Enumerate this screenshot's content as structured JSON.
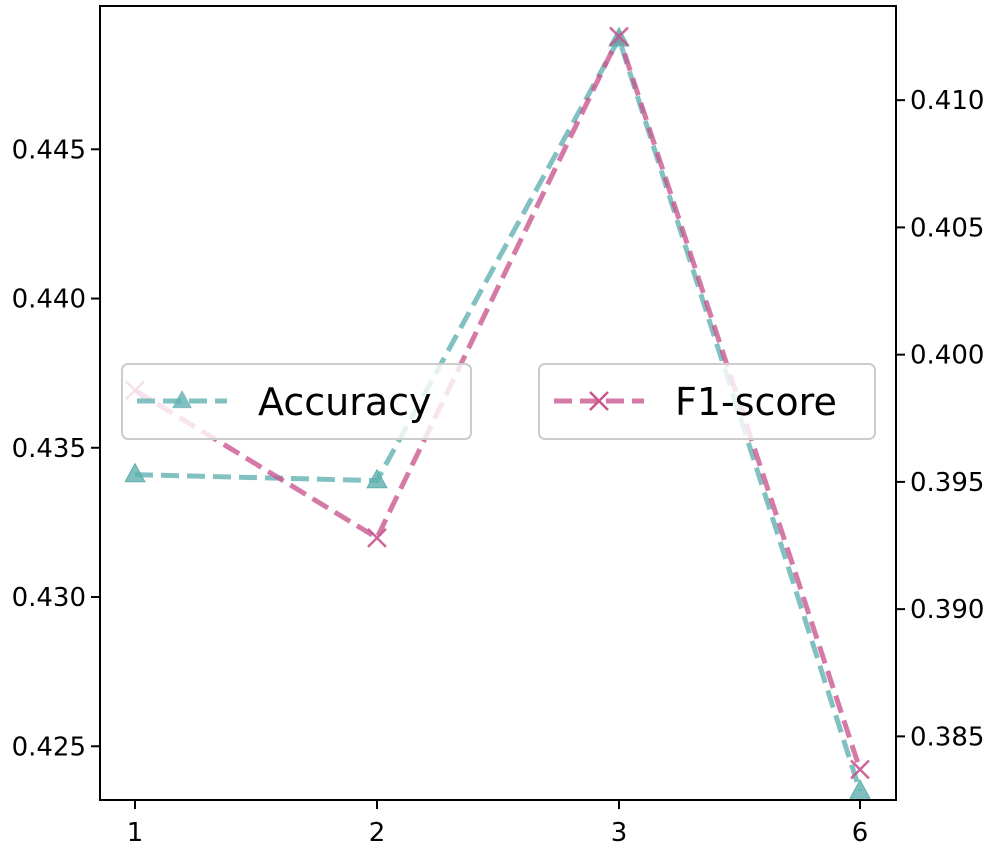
{
  "chart_data": {
    "type": "line",
    "categories": [
      "1",
      "2",
      "3",
      "6"
    ],
    "y_left": {
      "lim": [
        0.4232,
        0.4498
      ],
      "ticks": [
        0.425,
        0.43,
        0.435,
        0.44,
        0.445
      ],
      "tick_labels": [
        "0.425",
        "0.430",
        "0.435",
        "0.440",
        "0.445"
      ]
    },
    "y_right": {
      "lim": [
        0.3825,
        0.4137
      ],
      "ticks": [
        0.385,
        0.39,
        0.395,
        0.4,
        0.405,
        0.41
      ],
      "tick_labels": [
        "0.385",
        "0.390",
        "0.395",
        "0.400",
        "0.405",
        "0.410"
      ]
    },
    "series": [
      {
        "name": "Accuracy",
        "axis": "left",
        "values": [
          0.4341,
          0.4339,
          0.4487,
          0.4235
        ],
        "color": "#5fafaf",
        "marker": "triangle",
        "linestyle": "dashed"
      },
      {
        "name": "F1-score",
        "axis": "right",
        "values": [
          0.3986,
          0.3928,
          0.4125,
          0.3837
        ],
        "color": "#c9558e",
        "marker": "x",
        "linestyle": "dashed"
      }
    ],
    "legends": [
      {
        "series": "Accuracy",
        "placement": "center-left"
      },
      {
        "series": "F1-score",
        "placement": "center-right"
      }
    ],
    "grid": false
  }
}
